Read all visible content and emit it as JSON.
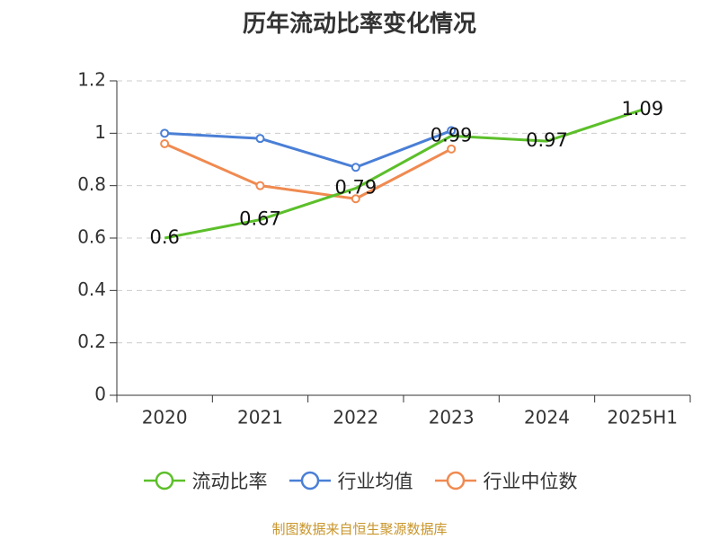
{
  "chart_data": {
    "type": "line",
    "title": "历年流动比率变化情况",
    "categories": [
      "2020",
      "2021",
      "2022",
      "2023",
      "2024",
      "2025H1"
    ],
    "ylim": [
      0,
      1.2
    ],
    "yticks": [
      "0",
      "0.2",
      "0.4",
      "0.6",
      "0.8",
      "1",
      "1.2"
    ],
    "grid": true,
    "legend_position": "bottom",
    "series": [
      {
        "name": "流动比率",
        "color": "#5cbf2a",
        "values": [
          0.6,
          0.67,
          0.79,
          0.99,
          0.97,
          1.09
        ],
        "labels": [
          "0.6",
          "0.67",
          "0.79",
          "0.99",
          "0.97",
          "1.09"
        ],
        "markers": false
      },
      {
        "name": "行业均值",
        "color": "#4a7fd6",
        "values": [
          1.0,
          0.98,
          0.87,
          1.01,
          null,
          null
        ],
        "labels": null,
        "markers": true
      },
      {
        "name": "行业中位数",
        "color": "#f08a50",
        "values": [
          0.96,
          0.8,
          0.75,
          0.94,
          null,
          null
        ],
        "labels": null,
        "markers": true
      }
    ]
  },
  "footer": {
    "source": "制图数据来自恒生聚源数据库"
  }
}
